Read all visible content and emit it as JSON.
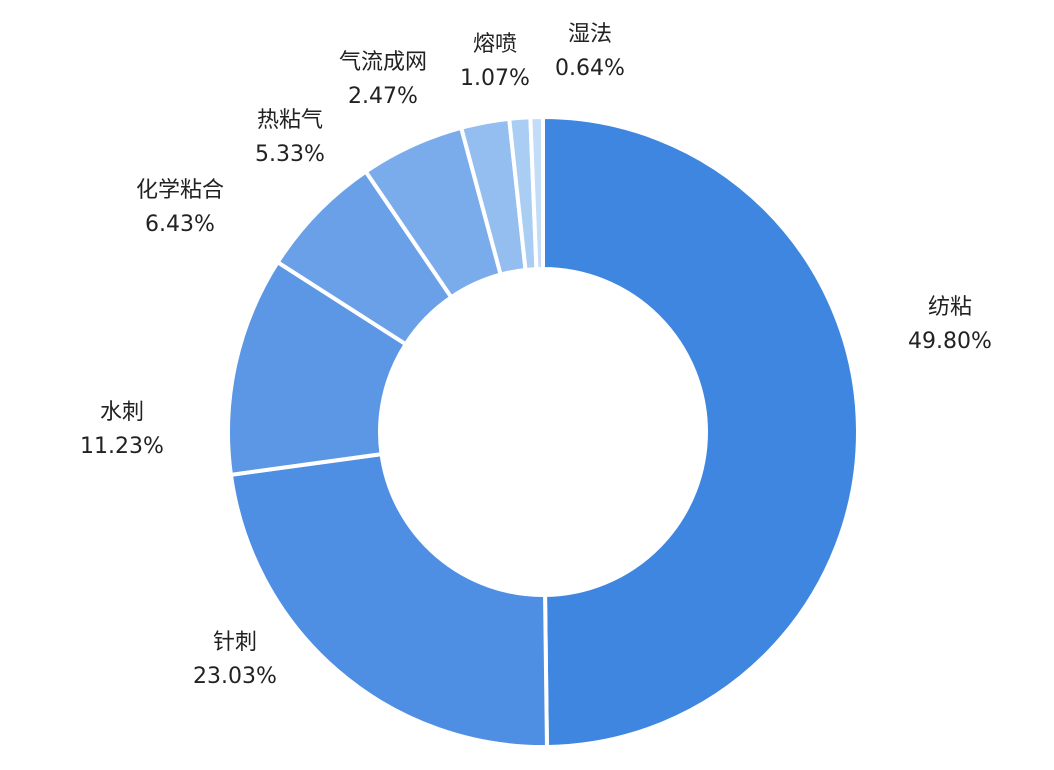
{
  "chart_data": {
    "type": "donut",
    "categories": [
      "纺粘",
      "针刺",
      "水刺",
      "化学粘合",
      "热粘气",
      "气流成网",
      "熔喷",
      "湿法"
    ],
    "values": [
      49.8,
      23.03,
      11.23,
      6.43,
      5.33,
      2.47,
      1.07,
      0.64
    ],
    "value_labels": [
      "49.80%",
      "23.03%",
      "11.23%",
      "6.43%",
      "5.33%",
      "2.47%",
      "1.07%",
      "0.64%"
    ],
    "colors": [
      "#3f86e0",
      "#4f8fe3",
      "#5b97e4",
      "#6aa0e8",
      "#7aabeb",
      "#94bdf0",
      "#aacdf3",
      "#c3dcf7"
    ]
  }
}
